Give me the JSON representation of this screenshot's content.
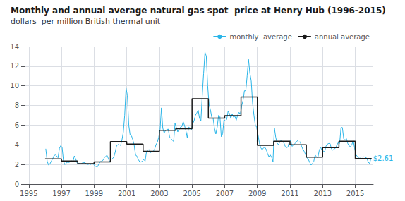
{
  "chart_data": {
    "type": "line",
    "title": "Monthly and annual average natural gas spot  price at Henry Hub (1996-2015)",
    "subtitle": "dollars  per million British thermal unit",
    "series": [
      {
        "name": "monthly  average",
        "color": "#2ab5e8",
        "type": "line",
        "x": [
          1996.042,
          1996.125,
          1996.208,
          1996.292,
          1996.375,
          1996.458,
          1996.542,
          1996.625,
          1996.708,
          1996.792,
          1996.875,
          1996.958,
          1997.042,
          1997.125,
          1997.208,
          1997.292,
          1997.375,
          1997.458,
          1997.542,
          1997.625,
          1997.708,
          1997.792,
          1997.875,
          1997.958,
          1998.042,
          1998.125,
          1998.208,
          1998.292,
          1998.375,
          1998.458,
          1998.542,
          1998.625,
          1998.708,
          1998.792,
          1998.875,
          1998.958,
          1999.042,
          1999.125,
          1999.208,
          1999.292,
          1999.375,
          1999.458,
          1999.542,
          1999.625,
          1999.708,
          1999.792,
          1999.875,
          1999.958,
          2000.042,
          2000.125,
          2000.208,
          2000.292,
          2000.375,
          2000.458,
          2000.542,
          2000.625,
          2000.708,
          2000.792,
          2000.875,
          2000.958,
          2001.042,
          2001.125,
          2001.208,
          2001.292,
          2001.375,
          2001.458,
          2001.542,
          2001.625,
          2001.708,
          2001.792,
          2001.875,
          2001.958,
          2002.042,
          2002.125,
          2002.208,
          2002.292,
          2002.375,
          2002.458,
          2002.542,
          2002.625,
          2002.708,
          2002.792,
          2002.875,
          2002.958,
          2003.042,
          2003.125,
          2003.208,
          2003.292,
          2003.375,
          2003.458,
          2003.542,
          2003.625,
          2003.708,
          2003.792,
          2003.875,
          2003.958,
          2004.042,
          2004.125,
          2004.208,
          2004.292,
          2004.375,
          2004.458,
          2004.542,
          2004.625,
          2004.708,
          2004.792,
          2004.875,
          2004.958,
          2005.042,
          2005.125,
          2005.208,
          2005.292,
          2005.375,
          2005.458,
          2005.542,
          2005.625,
          2005.708,
          2005.792,
          2005.875,
          2005.958,
          2006.042,
          2006.125,
          2006.208,
          2006.292,
          2006.375,
          2006.458,
          2006.542,
          2006.625,
          2006.708,
          2006.792,
          2006.875,
          2006.958,
          2007.042,
          2007.125,
          2007.208,
          2007.292,
          2007.375,
          2007.458,
          2007.542,
          2007.625,
          2007.708,
          2007.792,
          2007.875,
          2007.958,
          2008.042,
          2008.125,
          2008.208,
          2008.292,
          2008.375,
          2008.458,
          2008.542,
          2008.625,
          2008.708,
          2008.792,
          2008.875,
          2008.958,
          2009.042,
          2009.125,
          2009.208,
          2009.292,
          2009.375,
          2009.458,
          2009.542,
          2009.625,
          2009.708,
          2009.792,
          2009.875,
          2009.958,
          2010.042,
          2010.125,
          2010.208,
          2010.292,
          2010.375,
          2010.458,
          2010.542,
          2010.625,
          2010.708,
          2010.792,
          2010.875,
          2010.958,
          2011.042,
          2011.125,
          2011.208,
          2011.292,
          2011.375,
          2011.458,
          2011.542,
          2011.625,
          2011.708,
          2011.792,
          2011.875,
          2011.958,
          2012.042,
          2012.125,
          2012.208,
          2012.292,
          2012.375,
          2012.458,
          2012.542,
          2012.625,
          2012.708,
          2012.792,
          2012.875,
          2012.958,
          2013.042,
          2013.125,
          2013.208,
          2013.292,
          2013.375,
          2013.458,
          2013.542,
          2013.625,
          2013.708,
          2013.792,
          2013.875,
          2013.958,
          2014.042,
          2014.125,
          2014.208,
          2014.292,
          2014.375,
          2014.458,
          2014.542,
          2014.625,
          2014.708,
          2014.792,
          2014.875,
          2014.958,
          2015.042,
          2015.125,
          2015.208,
          2015.292,
          2015.375,
          2015.458,
          2015.542,
          2015.625,
          2015.708,
          2015.792,
          2015.875,
          2015.958
        ],
        "values": [
          3.6,
          2.35,
          1.95,
          2.05,
          2.33,
          2.55,
          2.88,
          2.97,
          2.87,
          2.68,
          3.62,
          3.91,
          3.72,
          2.36,
          1.98,
          2.15,
          2.22,
          2.2,
          2.28,
          2.35,
          2.31,
          2.87,
          2.55,
          2.16,
          2.1,
          2.08,
          2.03,
          2.19,
          2.2,
          2.18,
          2.02,
          2.0,
          2.05,
          2.0,
          2.12,
          2.05,
          1.86,
          1.78,
          1.75,
          2.05,
          2.28,
          2.3,
          2.42,
          2.67,
          2.83,
          2.93,
          2.6,
          2.27,
          2.49,
          2.59,
          2.75,
          3.25,
          3.87,
          4.03,
          4.0,
          3.94,
          4.5,
          5.3,
          7.01,
          9.78,
          9.0,
          5.98,
          5.01,
          4.91,
          4.5,
          3.95,
          2.95,
          2.85,
          2.5,
          2.29,
          2.25,
          2.34,
          2.5,
          2.35,
          3.27,
          3.46,
          3.51,
          3.2,
          3.3,
          3.33,
          3.56,
          4.01,
          4.26,
          4.77,
          5.56,
          7.76,
          5.7,
          5.2,
          5.46,
          5.54,
          5.6,
          4.8,
          4.65,
          4.46,
          4.35,
          6.18,
          5.77,
          5.32,
          5.56,
          5.8,
          5.85,
          6.35,
          5.95,
          5.42,
          4.73,
          5.8,
          5.7,
          5.5,
          6.14,
          6.44,
          7.0,
          7.24,
          7.53,
          6.7,
          6.45,
          9.0,
          11.25,
          13.42,
          13.0,
          10.0,
          8.1,
          7.56,
          6.8,
          6.68,
          5.67,
          5.1,
          5.8,
          7.0,
          6.86,
          4.83,
          5.13,
          6.58,
          6.39,
          6.6,
          7.4,
          7.2,
          6.67,
          7.15,
          6.8,
          6.9,
          6.5,
          7.01,
          7.3,
          7.1,
          7.99,
          8.51,
          9.5,
          9.5,
          11.0,
          12.69,
          11.3,
          10.5,
          8.26,
          7.01,
          6.01,
          5.79,
          5.02,
          4.19,
          3.71,
          3.5,
          3.68,
          3.75,
          3.53,
          3.1,
          2.79,
          2.97,
          2.75,
          2.3,
          5.73,
          4.78,
          4.18,
          4.02,
          4.26,
          4.47,
          4.28,
          4.22,
          3.83,
          3.71,
          3.78,
          4.32,
          4.45,
          3.85,
          3.96,
          4.11,
          4.25,
          4.42,
          4.27,
          4.3,
          3.86,
          3.54,
          3.32,
          2.99,
          2.68,
          2.52,
          2.21,
          1.94,
          2.1,
          2.33,
          2.96,
          2.76,
          2.71,
          3.43,
          3.78,
          3.42,
          3.36,
          3.29,
          3.88,
          4.06,
          4.14,
          4.12,
          3.57,
          3.46,
          3.57,
          3.67,
          3.98,
          4.23,
          4.14,
          5.75,
          5.76,
          4.62,
          4.47,
          4.62,
          4.12,
          3.89,
          3.81,
          4.04,
          4.42,
          3.69,
          2.99,
          2.82,
          2.65,
          2.62,
          2.77,
          2.75,
          2.78,
          2.71,
          2.63,
          2.24,
          2.1,
          2.61
        ]
      },
      {
        "name": "annual average",
        "color": "#1a1a1a",
        "type": "step",
        "x": [
          1996,
          1997,
          1998,
          1999,
          2000,
          2001,
          2002,
          2003,
          2004,
          2005,
          2006,
          2007,
          2008,
          2009,
          2010,
          2011,
          2012,
          2013,
          2014,
          2015
        ],
        "x_end": [
          1997,
          1998,
          1999,
          2000,
          2001,
          2002,
          2003,
          2004,
          2005,
          2006,
          2007,
          2008,
          2009,
          2010,
          2011,
          2012,
          2013,
          2014,
          2015,
          2016
        ],
        "values": [
          2.57,
          2.35,
          2.08,
          2.27,
          4.32,
          4.07,
          3.33,
          5.47,
          5.63,
          8.69,
          6.72,
          6.97,
          8.86,
          3.94,
          4.37,
          4.0,
          2.75,
          3.72,
          4.37,
          2.61
        ]
      }
    ],
    "annotations": [
      {
        "text": "$2.61",
        "x": 2016.0,
        "y": 2.61,
        "color": "#2ab5e8"
      }
    ],
    "xlim": [
      1994.75,
      2016.1
    ],
    "xticks": [
      1995,
      1997,
      1999,
      2001,
      2003,
      2005,
      2007,
      2009,
      2011,
      2013,
      2015
    ],
    "ylim": [
      0,
      14
    ],
    "yticks": [
      0,
      2,
      4,
      6,
      8,
      10,
      12,
      14
    ],
    "grid": true,
    "legend": "upper right"
  }
}
